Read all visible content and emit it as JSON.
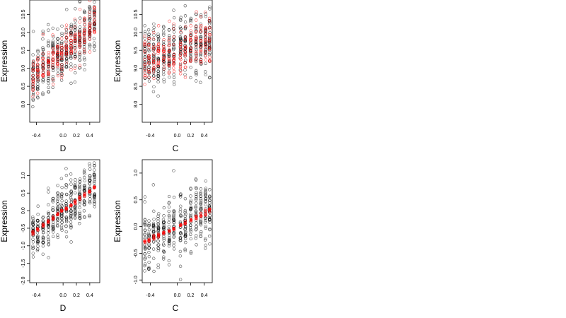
{
  "chart_data": [
    {
      "type": "scatter",
      "xlabel": "D",
      "ylabel": "Expression",
      "xlim": [
        -0.5,
        0.55
      ],
      "ylim": [
        7.5,
        10.9
      ],
      "xticks": [
        -0.4,
        0.0,
        0.2,
        0.4
      ],
      "xtick_labels": [
        "-0.4",
        "0.0",
        "0.2",
        "0.4"
      ],
      "yticks": [
        8.0,
        8.5,
        9.0,
        9.5,
        10.0,
        10.5
      ],
      "ytick_labels": [
        "8.0",
        "8.5",
        "9.0",
        "9.5",
        "10.0",
        "10.5"
      ],
      "grid": false,
      "x_groups": [
        -0.45,
        -0.38,
        -0.3,
        -0.22,
        -0.15,
        -0.08,
        -0.02,
        0.05,
        0.12,
        0.18,
        0.25,
        0.32,
        0.4,
        0.47
      ],
      "series": [
        {
          "color": "#000000",
          "fill": "none",
          "trend": {
            "slope": 1.5,
            "intercept": 9.45
          },
          "spread": 0.42,
          "points_per_group": 28
        },
        {
          "color": "#ff0000",
          "fill": "none",
          "trend": {
            "slope": 1.5,
            "intercept": 9.45
          },
          "spread": 0.28,
          "points_per_group": 16
        }
      ]
    },
    {
      "type": "scatter",
      "xlabel": "C",
      "ylabel": "Expression",
      "xlim": [
        -0.52,
        0.52
      ],
      "ylim": [
        7.5,
        10.9
      ],
      "xticks": [
        -0.4,
        0.0,
        0.2,
        0.4
      ],
      "xtick_labels": [
        "-0.4",
        "0.0",
        "0.2",
        "0.4"
      ],
      "yticks": [
        8.0,
        8.5,
        9.0,
        9.5,
        10.0,
        10.5
      ],
      "ytick_labels": [
        "8.0",
        "8.5",
        "9.0",
        "9.5",
        "10.0",
        "10.5"
      ],
      "grid": false,
      "x_groups": [
        -0.48,
        -0.42,
        -0.35,
        -0.28,
        -0.2,
        -0.12,
        -0.05,
        0.05,
        0.12,
        0.2,
        0.28,
        0.35,
        0.42,
        0.48
      ],
      "series": [
        {
          "color": "#000000",
          "fill": "none",
          "trend": {
            "slope": 0.55,
            "intercept": 9.5
          },
          "spread": 0.42,
          "points_per_group": 28
        },
        {
          "color": "#ff0000",
          "fill": "none",
          "trend": {
            "slope": 0.55,
            "intercept": 9.5
          },
          "spread": 0.35,
          "points_per_group": 16
        }
      ]
    },
    {
      "type": "scatter",
      "xlabel": "D",
      "ylabel": "Expression",
      "xlim": [
        -0.5,
        0.55
      ],
      "ylim": [
        -2.05,
        1.45
      ],
      "xticks": [
        -0.4,
        0.0,
        0.2,
        0.4
      ],
      "xtick_labels": [
        "-0.4",
        "0.0",
        "0.2",
        "0.4"
      ],
      "yticks": [
        -2.0,
        -1.5,
        -1.0,
        -0.5,
        0.0,
        0.5,
        1.0
      ],
      "ytick_labels": [
        "-2.0",
        "-1.5",
        "-1.0",
        "-0.5",
        "0.0",
        "0.5",
        "1.0"
      ],
      "grid": false,
      "x_groups": [
        -0.45,
        -0.38,
        -0.3,
        -0.22,
        -0.15,
        -0.08,
        -0.02,
        0.05,
        0.12,
        0.18,
        0.25,
        0.32,
        0.4,
        0.47
      ],
      "series": [
        {
          "color": "#000000",
          "fill": "none",
          "trend": {
            "slope": 1.4,
            "intercept": 0.0
          },
          "spread": 0.38,
          "points_per_group": 28
        },
        {
          "color": "#ff0000",
          "fill": "#ff0000",
          "trend": {
            "slope": 1.4,
            "intercept": 0.0
          },
          "spread": 0.02,
          "points_per_group": 4
        }
      ]
    },
    {
      "type": "scatter",
      "xlabel": "C",
      "ylabel": "Expression",
      "xlim": [
        -0.52,
        0.52
      ],
      "ylim": [
        -1.05,
        1.25
      ],
      "xticks": [
        -0.4,
        0.0,
        0.2,
        0.4
      ],
      "xtick_labels": [
        "-0.4",
        "0.0",
        "0.2",
        "0.4"
      ],
      "yticks": [
        -1.0,
        -0.5,
        0.0,
        0.5,
        1.0
      ],
      "ytick_labels": [
        "-1.0",
        "-0.5",
        "0.0",
        "0.5",
        "1.0"
      ],
      "grid": false,
      "x_groups": [
        -0.48,
        -0.42,
        -0.35,
        -0.28,
        -0.2,
        -0.12,
        -0.05,
        0.05,
        0.12,
        0.2,
        0.28,
        0.35,
        0.42,
        0.48
      ],
      "series": [
        {
          "color": "#000000",
          "fill": "none",
          "trend": {
            "slope": 0.6,
            "intercept": 0.0
          },
          "spread": 0.3,
          "points_per_group": 28
        },
        {
          "color": "#ff0000",
          "fill": "#ff0000",
          "trend": {
            "slope": 0.6,
            "intercept": 0.0
          },
          "spread": 0.02,
          "points_per_group": 4
        }
      ]
    }
  ]
}
